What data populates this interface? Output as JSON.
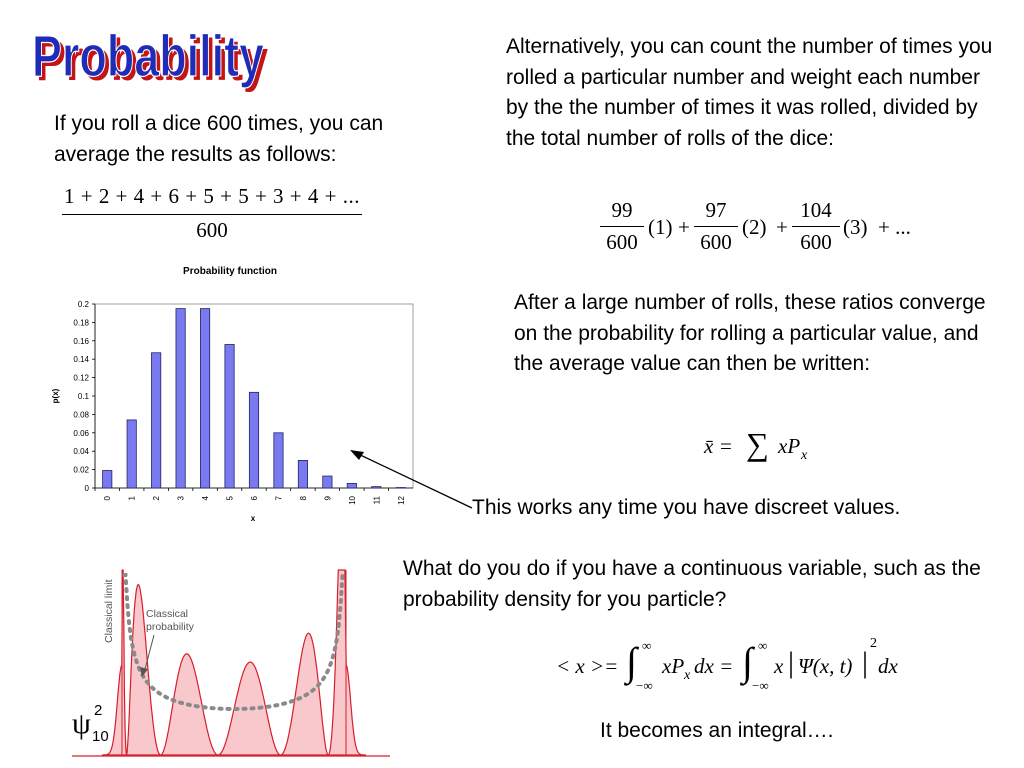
{
  "slide": {
    "title": "Probability",
    "left_intro": "If you roll a dice 600 times, you can average the results as follows:",
    "right_intro": "Alternatively, you can count the number of times you rolled a particular number and weight each number by the the number of times it was rolled, divided by the total number of rolls of the dice:",
    "converge_text": "After a large number of rolls, these ratios converge on the probability for rolling a particular value, and the average value can then be written:",
    "discrete_note": "This works any time you have discreet values.",
    "continuous_question": "What do you do if you have a continuous variable, such as the probability density for you particle?",
    "integral_note": "It becomes an integral…."
  },
  "equations": {
    "average_numerator": "1 + 2 + 4 + 6 + 5 + 5 + 3 + 4 + ...",
    "average_denominator": "600",
    "weighted_terms": [
      {
        "num": "99",
        "den": "600",
        "val": "(1)"
      },
      {
        "num": "97",
        "den": "600",
        "val": "(2)"
      },
      {
        "num": "104",
        "den": "600",
        "val": "(3)"
      }
    ],
    "weighted_tail": "+ ...",
    "sum_lhs": "x̄ =",
    "sum_symbol": "∑",
    "sum_body": "xP",
    "sum_sub": "x",
    "integral_lhs": "< x >=",
    "integral_body1": "xP",
    "integral_sub1": "x",
    "integral_d1": "dx =",
    "integral_body2": "x",
    "integral_psi": "Ψ(x, t)",
    "integral_power": "2",
    "integral_d2": "dx",
    "upper_limit": "∞",
    "lower_limit": "−∞"
  },
  "chart_data": {
    "type": "bar",
    "title": "Probability function",
    "xlabel": "x",
    "ylabel": "p(x)",
    "categories": [
      "0",
      "1",
      "2",
      "3",
      "4",
      "5",
      "6",
      "7",
      "8",
      "9",
      "10",
      "11",
      "12"
    ],
    "values": [
      0.019,
      0.074,
      0.147,
      0.195,
      0.195,
      0.156,
      0.104,
      0.06,
      0.03,
      0.013,
      0.005,
      0.0015,
      0.0005
    ],
    "ylim": [
      0,
      0.2
    ],
    "yticks": [
      "0",
      "0.02",
      "0.04",
      "0.06",
      "0.08",
      "0.1",
      "0.12",
      "0.14",
      "0.16",
      "0.18",
      "0.2"
    ],
    "bar_color": "#7a7af0",
    "grid": false
  },
  "quantum_figure": {
    "classical_limit_label": "Classical limit",
    "classical_probability_label": "Classical probability",
    "psi_symbol": "ψ",
    "psi_power": "2",
    "psi_sub": "10",
    "fill_color": "#f8c8cc",
    "line_color": "#d81e2a",
    "dot_color": "#8a8a8a"
  },
  "colors": {
    "title_fill": "#1f2cb8",
    "title_shadow": "#c41414",
    "arrow": "#000000"
  }
}
